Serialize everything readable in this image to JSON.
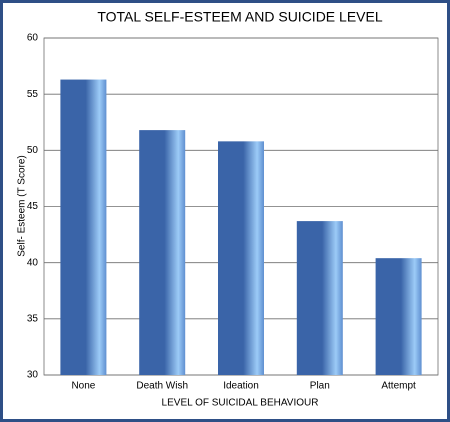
{
  "chart_data": {
    "type": "bar",
    "title": "TOTAL SELF-ESTEEM AND SUICIDE LEVEL",
    "x_label": "LEVEL OF SUICIDAL BEHAVIOUR",
    "y_label": "Self- Esteem (T Score)",
    "categories": [
      "None",
      "Death Wish",
      "Ideation",
      "Plan",
      "Attempt"
    ],
    "values": [
      56.3,
      51.8,
      50.8,
      43.7,
      40.4
    ],
    "color": "#3a64a8",
    "ylim": [
      30,
      60
    ],
    "yticks": [
      30,
      35,
      40,
      45,
      50,
      55,
      60
    ],
    "grid": true
  }
}
